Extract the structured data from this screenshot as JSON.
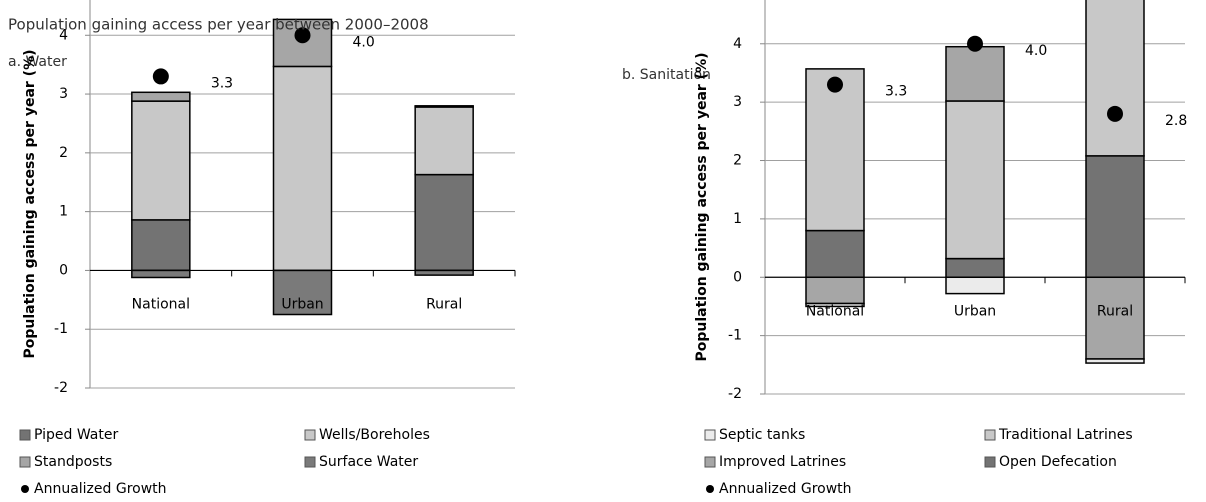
{
  "chart_data": [
    {
      "type": "stacked_bar",
      "title": "Population gaining access per year between 2000–2008",
      "subtitle": "a. Water",
      "ylabel": "Population  gaining access per year (%)",
      "categories": [
        "National",
        "Urban",
        "Rural"
      ],
      "series": [
        {
          "name": "Piped Water",
          "color": "#737373",
          "values": [
            0.86,
            0,
            1.63
          ]
        },
        {
          "name": "Standposts",
          "color": "#a6a6a6",
          "values": [
            0.15,
            0.8,
            0.02
          ]
        },
        {
          "name": "Wells/Boreholes",
          "color": "#c8c8c8",
          "values": [
            2.02,
            3.47,
            1.15
          ]
        },
        {
          "name": "Surface Water",
          "color": "#7a7a7a",
          "values": [
            -0.12,
            -0.75,
            -0.08
          ]
        }
      ],
      "growth": {
        "name": "Annualized Growth",
        "color": "#000000",
        "values": [
          3.3,
          4.0,
          null
        ],
        "value_labels": [
          "3.3",
          "4.0",
          null
        ]
      },
      "ylim": [
        -2,
        4.6
      ],
      "yticks": [
        -2,
        -1,
        0,
        1,
        2,
        3,
        4
      ],
      "grid": true
    },
    {
      "type": "stacked_bar",
      "subtitle": "b. Sanitation",
      "ylabel": "Population  gaining access per year (%)",
      "categories": [
        "National",
        "Urban",
        "Rural"
      ],
      "series": [
        {
          "name": "Septic tanks",
          "color": "#ebebeb",
          "values": [
            -0.05,
            -0.28,
            -0.07
          ]
        },
        {
          "name": "Improved Latrines",
          "color": "#a6a6a6",
          "values": [
            -0.45,
            0.93,
            -1.4
          ]
        },
        {
          "name": "Traditional Latrines",
          "color": "#c8c8c8",
          "values": [
            2.77,
            2.7,
            2.75
          ]
        },
        {
          "name": "Open Defecation",
          "color": "#737373",
          "values": [
            0.8,
            0.32,
            2.08
          ]
        }
      ],
      "growth": {
        "name": "Annualized Growth",
        "color": "#000000",
        "values": [
          3.3,
          4.0,
          2.8
        ],
        "value_labels": [
          "3.3",
          "4.0",
          "2.8"
        ]
      },
      "ylim": [
        -2,
        4.75
      ],
      "yticks": [
        -2,
        -1,
        0,
        1,
        2,
        3,
        4
      ],
      "grid": true
    }
  ]
}
